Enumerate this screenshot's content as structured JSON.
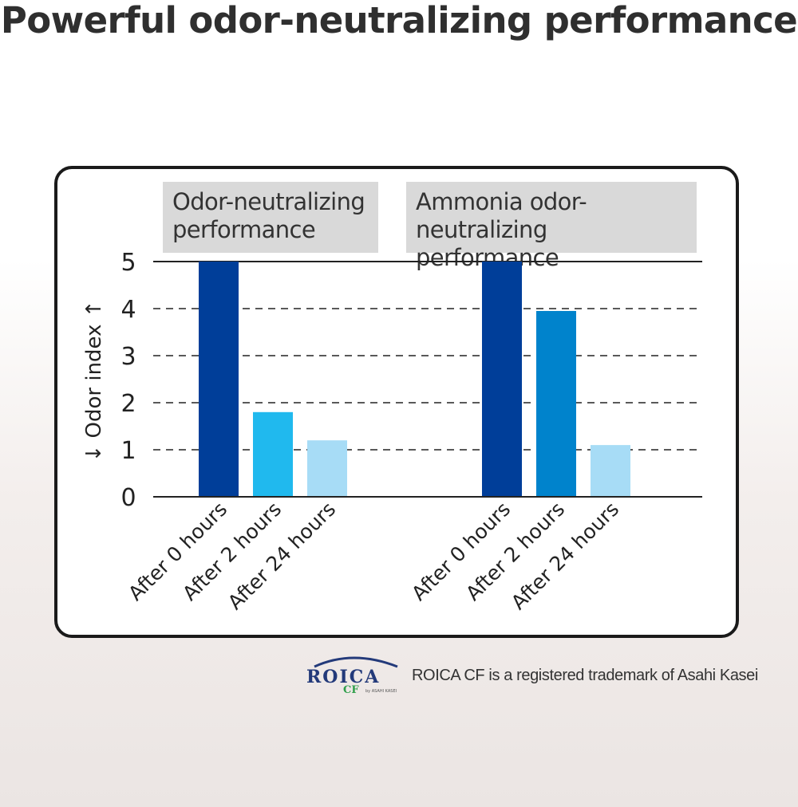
{
  "headline": "Powerful odor-neutralizing performance",
  "brand": {
    "logo_text": "ROICA",
    "logo_sub": "CF",
    "logo_by": "by ASAHI KASEI",
    "trademark_note": "ROICA CF is a registered trademark of Asahi Kasei"
  },
  "colors": {
    "after_0": "#003e99",
    "after_2_panel1": "#20b9ee",
    "after_2_panel2": "#0083cc",
    "after_24": "#a7dcf6",
    "label_bg": "#d9d9d9",
    "logo_blue": "#233a7a",
    "logo_green": "#2e9e4a"
  },
  "chart_data": {
    "type": "bar",
    "ylabel": "↓ Odor index ↑",
    "ylim": [
      0,
      5
    ],
    "yticks": [
      "0",
      "1",
      "2",
      "3",
      "4",
      "5"
    ],
    "grid": "dashed horizontal",
    "groups": [
      {
        "label": "Odor-neutralizing performance",
        "label_lines": [
          "Odor-neutralizing",
          "performance"
        ],
        "categories": [
          "After 0 hours",
          "After 2 hours",
          "After 24 hours"
        ],
        "values": [
          5,
          1.8,
          1.2
        ]
      },
      {
        "label": "Ammonia odor-neutralizing performance",
        "label_lines": [
          "Ammonia odor-neutralizing",
          "performance"
        ],
        "categories": [
          "After 0 hours",
          "After 2 hours",
          "After 24 hours"
        ],
        "values": [
          5,
          3.95,
          1.1
        ]
      }
    ]
  }
}
